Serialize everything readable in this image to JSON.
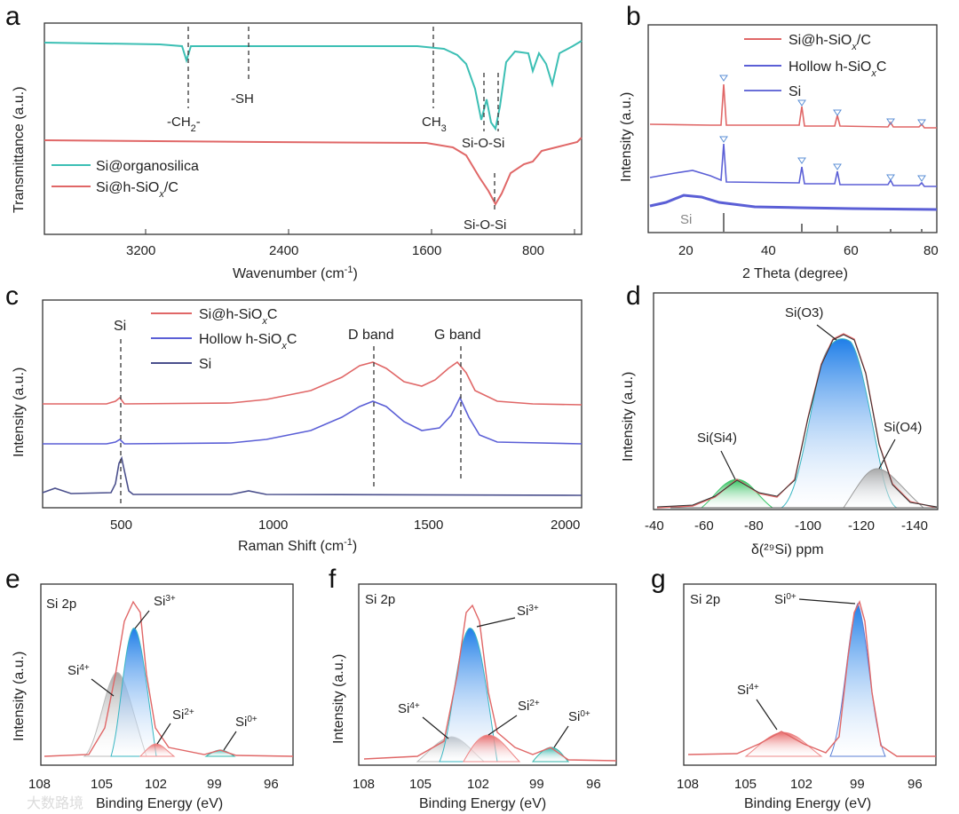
{
  "colors": {
    "teal": "#3cbfb4",
    "red": "#e06767",
    "blue": "#5b5fd6",
    "navy": "#4a4f8c",
    "green": "#3cc66a",
    "gray": "#bfbfbf",
    "cyan": "#38b6c2"
  },
  "chart_data": [
    {
      "panel": "a",
      "type": "line",
      "xlabel": "Wavenumber (cm⁻¹)",
      "ylabel": "Transmittance (a.u.)",
      "xlim": [
        4000,
        600
      ],
      "xticks": [
        "3200",
        "2400",
        "1600",
        "800"
      ],
      "legend": [
        "Si@organosilica",
        "Si@h-SiOₓ/C"
      ],
      "annotations": [
        "-CH₂-",
        "-SH",
        "CH₃",
        "Si-O-Si",
        "Si-O-Si"
      ],
      "series": [
        {
          "name": "Si@organosilica",
          "x": [
            4000,
            3800,
            3600,
            3400,
            3000,
            2925,
            2850,
            2600,
            2200,
            1800,
            1450,
            1300,
            1250,
            1150,
            1080,
            1020,
            980,
            900,
            840,
            800,
            720,
            640,
            600
          ],
          "y": [
            0.88,
            0.87,
            0.87,
            0.86,
            0.85,
            0.79,
            0.84,
            0.85,
            0.85,
            0.85,
            0.84,
            0.78,
            0.72,
            0.55,
            0.35,
            0.4,
            0.33,
            0.62,
            0.72,
            0.8,
            0.6,
            0.85,
            0.87
          ]
        },
        {
          "name": "Si@h-SiOₓ/C",
          "x": [
            4000,
            3600,
            3200,
            2800,
            2400,
            2000,
            1600,
            1400,
            1250,
            1150,
            1080,
            1000,
            900,
            800,
            700,
            600
          ],
          "y": [
            0.42,
            0.42,
            0.41,
            0.41,
            0.41,
            0.41,
            0.41,
            0.4,
            0.36,
            0.25,
            0.08,
            0.22,
            0.35,
            0.38,
            0.41,
            0.44
          ]
        }
      ]
    },
    {
      "panel": "b",
      "type": "line",
      "xlabel": "2 Theta (degree)",
      "ylabel": "Intensity (a.u.)",
      "xlim": [
        10,
        80
      ],
      "xticks": [
        "20",
        "40",
        "60",
        "80"
      ],
      "legend": [
        "Si@h-SiOₓ/C",
        "Hollow h-SiOₓC",
        "Si"
      ],
      "annotations": [
        "Si"
      ],
      "si_reference_peaks": [
        28.4,
        47.3,
        56.1,
        69.1,
        76.4
      ],
      "series": [
        {
          "name": "Si@h-SiOₓ/C",
          "peaks_2theta": [
            28.4,
            47.3,
            56.1,
            69.1,
            76.4
          ]
        },
        {
          "name": "Hollow h-SiOₓC",
          "peaks_2theta": [
            28.4,
            47.3,
            56.1,
            69.1,
            76.4
          ]
        },
        {
          "name": "Si",
          "broad_hump_2theta": 22
        }
      ]
    },
    {
      "panel": "c",
      "type": "line",
      "xlabel": "Raman Shift (cm⁻¹)",
      "ylabel": "Intensity (a.u.)",
      "xlim": [
        270,
        2000
      ],
      "xticks": [
        "500",
        "1000",
        "1500",
        "2000"
      ],
      "legend": [
        "Si@h-SiOₓC",
        "Hollow h-SiOₓC",
        "Si"
      ],
      "annotations": [
        "Si",
        "D band",
        "G band"
      ],
      "peaks": {
        "Si": 510,
        "D band": 1330,
        "G band": 1590
      }
    },
    {
      "panel": "d",
      "type": "area",
      "xlabel": "δ(²⁹Si) ppm",
      "ylabel": "Intensity (a.u.)",
      "xlim": [
        -40,
        -140
      ],
      "xticks": [
        "-40",
        "-60",
        "-80",
        "-100",
        "-120",
        "-140"
      ],
      "annotations": [
        "Si(O3)",
        "Si(Si4)",
        "Si(O4)"
      ],
      "components": [
        {
          "name": "Si(Si4)",
          "center": -70,
          "height": 0.17,
          "width": 7
        },
        {
          "name": "Si(O3)",
          "center": -105,
          "height": 0.92,
          "width": 10
        },
        {
          "name": "Si(O4)",
          "center": -117,
          "height": 0.24,
          "width": 7
        }
      ]
    },
    {
      "panel": "e",
      "type": "area",
      "xlabel": "Binding Energy (eV)",
      "ylabel": "Intensity (a.u.)",
      "xlim": [
        108,
        95
      ],
      "xticks": [
        "108",
        "105",
        "102",
        "99",
        "96"
      ],
      "annotations": [
        "Si 2p",
        "Si³⁺",
        "Si⁴⁺",
        "Si²⁺",
        "Si⁰⁺"
      ],
      "components": [
        {
          "name": "Si⁴⁺",
          "center": 103.8,
          "height": 0.52,
          "width": 0.9
        },
        {
          "name": "Si³⁺",
          "center": 103.0,
          "height": 0.8,
          "width": 0.55
        },
        {
          "name": "Si²⁺",
          "center": 102.1,
          "height": 0.08,
          "width": 0.6
        },
        {
          "name": "Si⁰⁺",
          "center": 98.9,
          "height": 0.05,
          "width": 0.5
        }
      ]
    },
    {
      "panel": "f",
      "type": "area",
      "xlabel": "Binding Energy (eV)",
      "ylabel": "Intensity (a.u.)",
      "xlim": [
        108,
        95
      ],
      "xticks": [
        "108",
        "105",
        "102",
        "99",
        "96"
      ],
      "annotations": [
        "Si 2p",
        "Si³⁺",
        "Si⁴⁺",
        "Si²⁺",
        "Si⁰⁺"
      ],
      "components": [
        {
          "name": "Si⁴⁺",
          "center": 103.2,
          "height": 0.14,
          "width": 0.9
        },
        {
          "name": "Si³⁺",
          "center": 102.2,
          "height": 0.84,
          "width": 0.75
        },
        {
          "name": "Si²⁺",
          "center": 101.2,
          "height": 0.15,
          "width": 0.8
        },
        {
          "name": "Si⁰⁺",
          "center": 98.5,
          "height": 0.1,
          "width": 0.5
        }
      ]
    },
    {
      "panel": "g",
      "type": "area",
      "xlabel": "Binding Energy (eV)",
      "ylabel": "Intensity (a.u.)",
      "xlim": [
        108,
        95
      ],
      "xticks": [
        "108",
        "105",
        "102",
        "99",
        "96"
      ],
      "annotations": [
        "Si 2p",
        "Si⁰⁺",
        "Si⁴⁺"
      ],
      "components": [
        {
          "name": "Si⁴⁺",
          "center": 103.2,
          "height": 0.25,
          "width": 0.9
        },
        {
          "name": "Si⁰⁺",
          "center": 99.1,
          "height": 0.95,
          "width": 0.45
        }
      ]
    }
  ],
  "watermark": "大数路境"
}
